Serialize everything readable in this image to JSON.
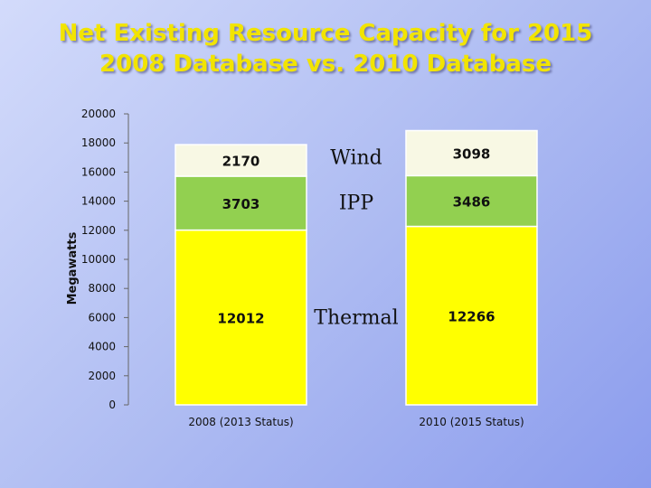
{
  "title_line1": "Net  Existing  Resource Capacity for 2015",
  "title_line2": "2008 Database vs. 2010 Database",
  "chart_data": {
    "type": "bar",
    "stacked": true,
    "categories": [
      "2008 (2013 Status)",
      "2010 (2015 Status)"
    ],
    "series": [
      {
        "name": "Thermal",
        "values": [
          12012,
          12266
        ],
        "color": "#ffff00"
      },
      {
        "name": "IPP",
        "values": [
          3703,
          3486
        ],
        "color": "#92d050"
      },
      {
        "name": "Wind",
        "values": [
          2170,
          3098
        ],
        "color": "#f8f8e4"
      }
    ],
    "ylabel": "Megawatts",
    "ylim": [
      0,
      20000
    ],
    "yticks": [
      0,
      2000,
      4000,
      6000,
      8000,
      10000,
      12000,
      14000,
      16000,
      18000,
      20000
    ],
    "grid": false,
    "legend": "series names printed between bars"
  }
}
